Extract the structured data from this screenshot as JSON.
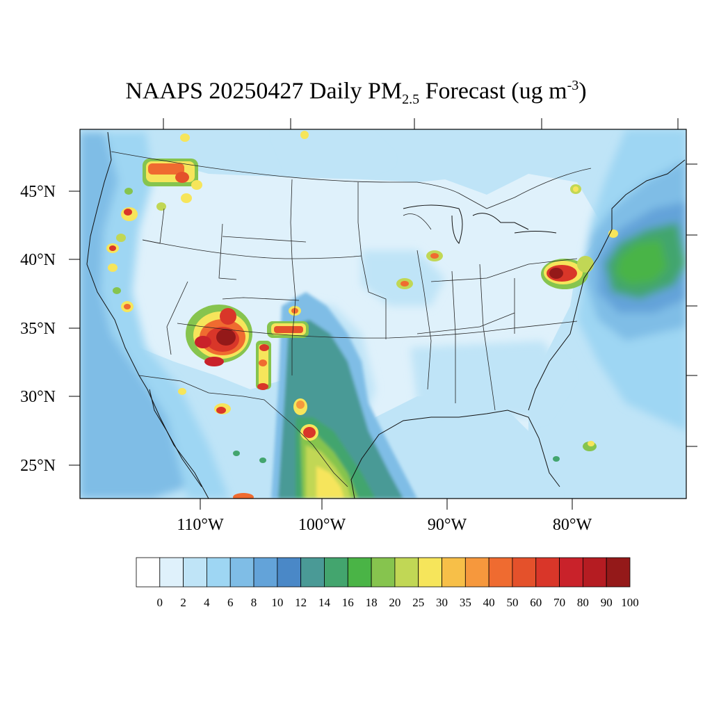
{
  "title": {
    "prefix": "NAAPS 20250427 Daily PM",
    "sub": "2.5",
    "middle": " Forecast (ug m",
    "sup": "-3",
    "suffix": ")"
  },
  "lat_labels": [
    "45°N",
    "40°N",
    "35°N",
    "30°N",
    "25°N"
  ],
  "lon_labels": [
    "110°W",
    "100°W",
    "90°W",
    "80°W"
  ],
  "colorbar": {
    "labels": [
      "0",
      "2",
      "4",
      "6",
      "8",
      "10",
      "12",
      "14",
      "16",
      "18",
      "20",
      "25",
      "30",
      "35",
      "40",
      "50",
      "60",
      "70",
      "80",
      "90",
      "100"
    ],
    "colors": [
      "#ffffff",
      "#dff1fb",
      "#bfe4f7",
      "#9ed6f3",
      "#7fbde6",
      "#63a3d9",
      "#4a88c7",
      "#4a9a96",
      "#43a56e",
      "#4ab446",
      "#86c44e",
      "#c1d755",
      "#f6e55b",
      "#f7bf48",
      "#f6983d",
      "#ef6b30",
      "#e4512b",
      "#d93629",
      "#c9222a",
      "#b51c22",
      "#941919"
    ]
  }
}
